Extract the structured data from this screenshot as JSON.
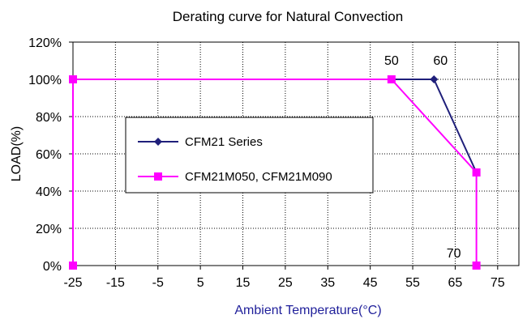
{
  "chart_data": {
    "type": "line",
    "title": "Derating curve for Natural Convection",
    "xlabel": "Ambient Temperature(°C)",
    "ylabel": "LOAD(%)",
    "xlim": [
      -25,
      80
    ],
    "ylim": [
      0,
      120
    ],
    "x_ticks": [
      -25,
      -15,
      -5,
      5,
      15,
      25,
      35,
      45,
      55,
      65,
      75
    ],
    "x_tick_labels": [
      "-25",
      "-15",
      "-5",
      "5",
      "15",
      "25",
      "35",
      "45",
      "55",
      "65",
      "75"
    ],
    "y_ticks": [
      0,
      20,
      40,
      60,
      80,
      100,
      120
    ],
    "y_tick_labels": [
      "0%",
      "20%",
      "40%",
      "60%",
      "80%",
      "100%",
      "120%"
    ],
    "grid": true,
    "legend_position": "center-left",
    "series": [
      {
        "name": "CFM21 Series",
        "color": "#1f1f7a",
        "marker": "diamond",
        "x": [
          -25,
          50,
          60,
          70
        ],
        "y": [
          100,
          100,
          100,
          50
        ]
      },
      {
        "name": "CFM21M050, CFM21M090",
        "color": "#ff00ff",
        "marker": "square",
        "x": [
          -25,
          -25,
          50,
          70,
          70
        ],
        "y": [
          0,
          100,
          100,
          50,
          0
        ]
      }
    ],
    "annotations": [
      {
        "text": "50",
        "x": 50,
        "y": 100
      },
      {
        "text": "60",
        "x": 60,
        "y": 100
      },
      {
        "text": "70",
        "x": 70,
        "y": 0
      }
    ]
  },
  "colors": {
    "xlabel": "#1f1f9a",
    "axis": "#000000",
    "grid": "#000000"
  }
}
